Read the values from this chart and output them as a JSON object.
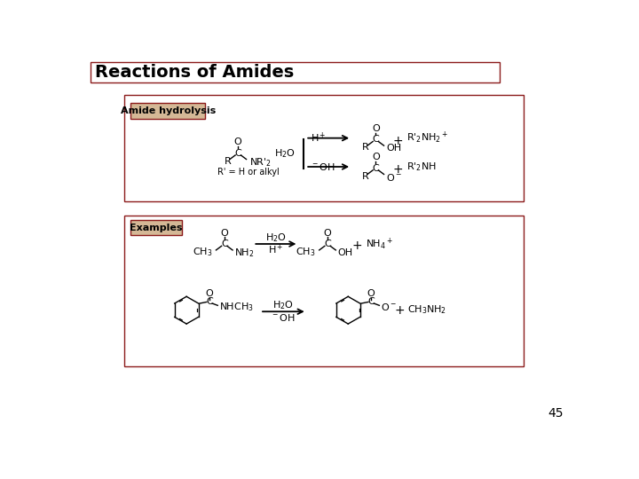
{
  "title": "Reactions of Amides",
  "page_number": "45",
  "bg_color": "#ffffff",
  "title_border": "#8B1A1A",
  "box_border": "#8B1A1A",
  "label_bg": "#D4B896",
  "label_border": "#8B1A1A",
  "s1_label": "Amide hydrolysis",
  "s2_label": "Examples",
  "title_fs": 14,
  "label_fs": 8,
  "chem_fs": 8,
  "small_fs": 7,
  "page_fs": 10
}
